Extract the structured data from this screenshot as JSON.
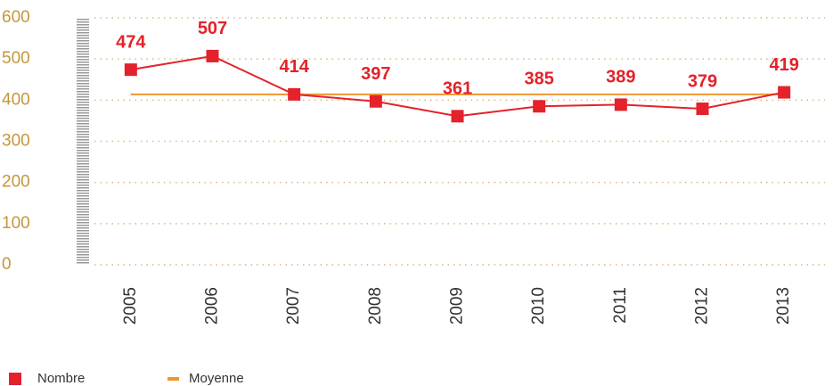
{
  "chart_data": {
    "type": "line",
    "categories": [
      "2005",
      "2006",
      "2007",
      "2008",
      "2009",
      "2010",
      "2011",
      "2012",
      "2013"
    ],
    "series": [
      {
        "name": "Nombre",
        "color": "#e3222b",
        "values": [
          474,
          507,
          414,
          397,
          361,
          385,
          389,
          379,
          419
        ]
      },
      {
        "name": "Moyenne",
        "color": "#f0962e",
        "values": [
          414,
          414,
          414,
          414,
          414,
          414,
          414,
          414,
          414
        ]
      }
    ],
    "ylim": [
      0,
      600
    ],
    "yticks": [
      0,
      100,
      200,
      300,
      400,
      500,
      600
    ],
    "grid": true
  }
}
